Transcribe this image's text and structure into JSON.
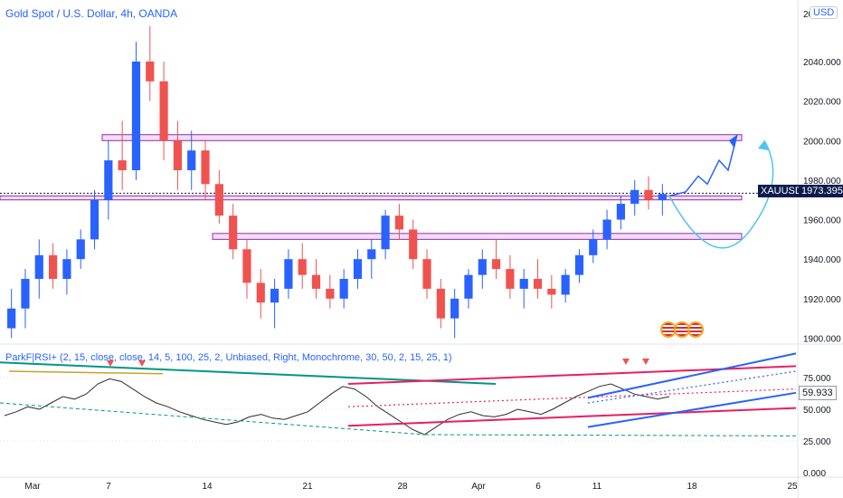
{
  "header": {
    "title": "Gold Spot / U.S. Dollar, 4h, OANDA",
    "currency": "USD"
  },
  "price_axis": {
    "ticks": [
      "2040.000",
      "2020.000",
      "2000.000",
      "1980.000",
      "1960.000",
      "1940.000",
      "1920.000",
      "1900.000"
    ],
    "top_partial": "20"
  },
  "rsi_axis": {
    "ticks": [
      "75.000",
      "50.000",
      "25.000",
      "0.000"
    ],
    "current_label": "59.933"
  },
  "time_axis": {
    "ticks": [
      "Mar",
      "7",
      "14",
      "21",
      "28",
      "Apr",
      "6",
      "11",
      "18",
      "25"
    ]
  },
  "symbol_tag": {
    "symbol": "XAUUSD",
    "price": "1973.395"
  },
  "rsi": {
    "title": "ParkF|RSI+ (2, 15, close, close, 14, 5, 100, 25, 2, Unbiased, Right, Monochrome, 30, 50, 2, 15, 25, 1)"
  },
  "colors": {
    "up": "#2962ff",
    "down": "#ef5350",
    "zone": "#9c27b0",
    "channel": "#e91e63",
    "trend": "#2962ff",
    "arrow_cyan": "#4fc3f7",
    "symbol_tag": "#0d1b4c",
    "rsi_line": "#2d2d2d",
    "green_line": "#009688"
  },
  "chart_data": {
    "type": "candlestick",
    "y_unit": "USD",
    "ylim": [
      1897,
      2062
    ],
    "x_dates": [
      "Mar",
      "7",
      "14",
      "21",
      "28",
      "Apr",
      "6",
      "11",
      "18",
      "25"
    ],
    "ohlc_approx": [
      [
        1905,
        1925,
        1900,
        1915
      ],
      [
        1915,
        1935,
        1905,
        1930
      ],
      [
        1930,
        1950,
        1920,
        1942
      ],
      [
        1942,
        1948,
        1925,
        1930
      ],
      [
        1930,
        1945,
        1922,
        1940
      ],
      [
        1940,
        1955,
        1935,
        1950
      ],
      [
        1950,
        1975,
        1945,
        1970
      ],
      [
        1970,
        2000,
        1960,
        1990
      ],
      [
        1990,
        2010,
        1975,
        1985
      ],
      [
        1985,
        2050,
        1980,
        2040
      ],
      [
        2040,
        2058,
        2020,
        2030
      ],
      [
        2030,
        2040,
        1990,
        2000
      ],
      [
        2000,
        2010,
        1975,
        1985
      ],
      [
        1985,
        2005,
        1975,
        1995
      ],
      [
        1995,
        2000,
        1970,
        1978
      ],
      [
        1978,
        1985,
        1958,
        1962
      ],
      [
        1962,
        1968,
        1940,
        1945
      ],
      [
        1945,
        1950,
        1920,
        1928
      ],
      [
        1928,
        1935,
        1910,
        1918
      ],
      [
        1918,
        1930,
        1905,
        1925
      ],
      [
        1925,
        1945,
        1920,
        1940
      ],
      [
        1940,
        1948,
        1925,
        1932
      ],
      [
        1932,
        1940,
        1920,
        1925
      ],
      [
        1925,
        1932,
        1915,
        1920
      ],
      [
        1920,
        1935,
        1915,
        1930
      ],
      [
        1930,
        1945,
        1925,
        1940
      ],
      [
        1940,
        1950,
        1930,
        1945
      ],
      [
        1945,
        1965,
        1940,
        1962
      ],
      [
        1962,
        1968,
        1950,
        1955
      ],
      [
        1955,
        1960,
        1935,
        1940
      ],
      [
        1940,
        1945,
        1920,
        1925
      ],
      [
        1925,
        1930,
        1905,
        1910
      ],
      [
        1910,
        1925,
        1900,
        1920
      ],
      [
        1920,
        1935,
        1915,
        1932
      ],
      [
        1932,
        1945,
        1925,
        1940
      ],
      [
        1940,
        1950,
        1930,
        1935
      ],
      [
        1935,
        1942,
        1920,
        1925
      ],
      [
        1925,
        1935,
        1915,
        1930
      ],
      [
        1930,
        1940,
        1920,
        1925
      ],
      [
        1925,
        1932,
        1915,
        1922
      ],
      [
        1922,
        1935,
        1918,
        1932
      ],
      [
        1932,
        1945,
        1928,
        1942
      ],
      [
        1942,
        1955,
        1938,
        1950
      ],
      [
        1950,
        1965,
        1945,
        1960
      ],
      [
        1960,
        1972,
        1955,
        1968
      ],
      [
        1968,
        1980,
        1962,
        1975
      ],
      [
        1975,
        1982,
        1965,
        1970
      ],
      [
        1970,
        1978,
        1962,
        1973
      ]
    ],
    "zones": [
      {
        "from": 2000,
        "to": 2003
      },
      {
        "from": 1970,
        "to": 1972
      },
      {
        "from": 1950,
        "to": 1953
      }
    ],
    "rsi_series": [
      45,
      48,
      52,
      50,
      55,
      60,
      58,
      62,
      70,
      74,
      72,
      66,
      60,
      55,
      52,
      48,
      45,
      42,
      40,
      38,
      40,
      44,
      46,
      43,
      42,
      45,
      48,
      55,
      62,
      68,
      66,
      60,
      52,
      46,
      40,
      34,
      30,
      36,
      42,
      46,
      48,
      45,
      44,
      46,
      50,
      48,
      46,
      50,
      55,
      60,
      64,
      68,
      70,
      66,
      62,
      60,
      58,
      60
    ],
    "rsi_ylim": [
      0,
      100
    ]
  }
}
